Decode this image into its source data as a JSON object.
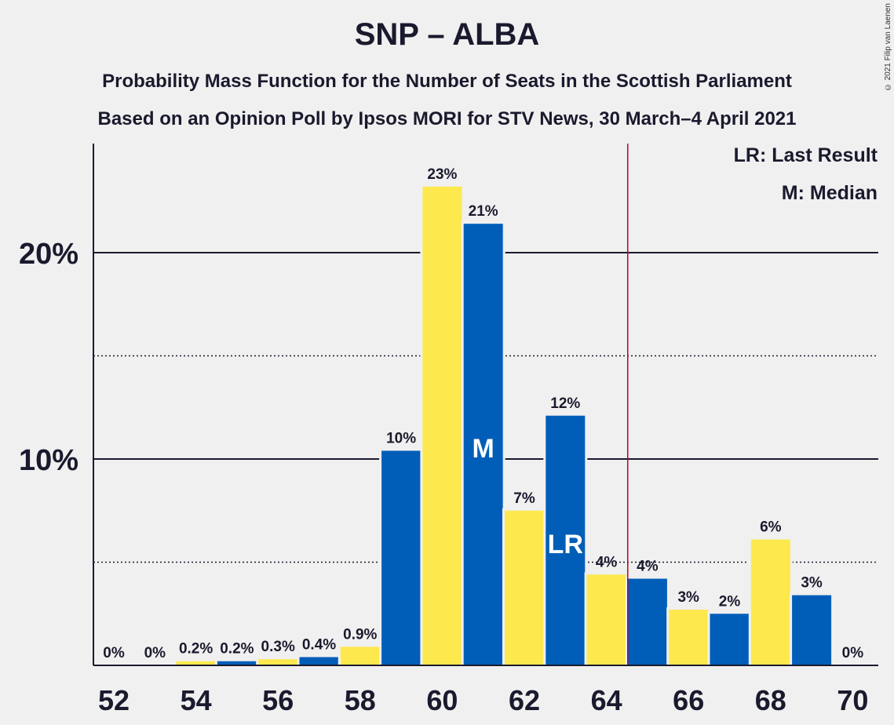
{
  "chart_data": {
    "type": "bar",
    "title": "SNP – ALBA",
    "subtitle": "Probability Mass Function for the Number of Seats in the Scottish Parliament",
    "subtitle2": "Based on an Opinion Poll by Ipsos MORI for STV News, 30 March–4 April 2021",
    "copyright": "© 2021 Filip van Laenen",
    "x": [
      52,
      53,
      54,
      55,
      56,
      57,
      58,
      59,
      60,
      61,
      62,
      63,
      64,
      65,
      66,
      67,
      68,
      69,
      70
    ],
    "values": [
      0,
      0,
      0.2,
      0.2,
      0.3,
      0.4,
      0.9,
      10.4,
      23.2,
      21.4,
      7.5,
      12.1,
      4.4,
      4.2,
      2.7,
      2.5,
      6.1,
      3.4,
      0
    ],
    "data_labels": [
      "0%",
      "0%",
      "0.2%",
      "0.2%",
      "0.3%",
      "0.4%",
      "0.9%",
      "10%",
      "23%",
      "21%",
      "7%",
      "12%",
      "4%",
      "4%",
      "3%",
      "2%",
      "6%",
      "3%",
      "0%"
    ],
    "x_tick_labels": [
      "52",
      "54",
      "56",
      "58",
      "60",
      "62",
      "64",
      "66",
      "68",
      "70"
    ],
    "y_tick_labels": [
      "10%",
      "20%"
    ],
    "ylim": [
      0,
      25.3
    ],
    "median_seat": 61,
    "median_marker": "M",
    "last_result_seat": 63,
    "last_result_marker": "LR",
    "majority_line_after_seat": 64,
    "legend": {
      "last_result": "LR: Last Result",
      "median": "M: Median",
      "placement": "top-right"
    },
    "colors": {
      "blue": "#005eb8",
      "yellow": "#fde84e",
      "majority_line": "#c0002a",
      "text": "#1a1a2e"
    }
  }
}
